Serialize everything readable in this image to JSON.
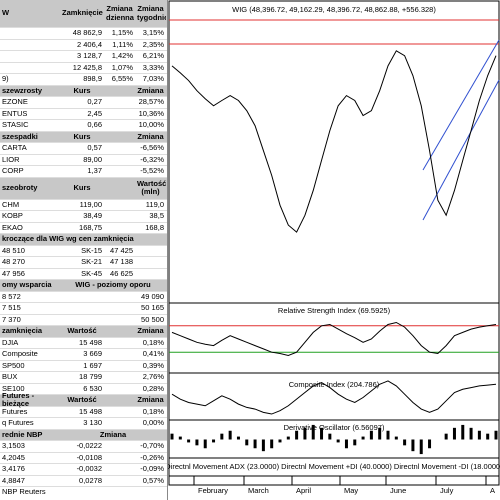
{
  "table": {
    "sections": [
      {
        "header": [
          "W",
          "Zamknięcie",
          "Zmiana dzienna",
          "Zmiana tygodniowa"
        ],
        "tall": true,
        "rows": [
          [
            null,
            "48 862,9",
            "1,15%",
            "3,15%"
          ],
          [
            null,
            "2 406,4",
            "1,11%",
            "2,35%"
          ],
          [
            null,
            "3 128,7",
            "1,42%",
            "6,21%"
          ],
          [
            null,
            "12 425,8",
            "1,07%",
            "3,33%"
          ],
          [
            "9)",
            "898,9",
            "6,55%",
            "7,03%"
          ]
        ]
      },
      {
        "header": [
          "szewzrosty",
          "Kurs",
          null,
          "Zmiana"
        ],
        "rows": [
          [
            "EZONE",
            "0,27",
            null,
            "28,57%"
          ],
          [
            "ENTUS",
            "2,45",
            null,
            "10,36%"
          ],
          [
            "STASIC",
            "0,66",
            null,
            "10,00%"
          ]
        ]
      },
      {
        "header": [
          "szespadki",
          "Kurs",
          null,
          "Zmiana"
        ],
        "rows": [
          [
            "CARTA",
            "0,57",
            null,
            "-6,56%"
          ],
          [
            "LIOR",
            "89,00",
            null,
            "-6,32%"
          ],
          [
            "CORP",
            "1,37",
            null,
            "-5,52%"
          ]
        ]
      },
      {
        "header": [
          "szeobroty",
          "Kurs",
          null,
          "Wartość (mln)"
        ],
        "tall": true,
        "rows": [
          [
            "CHM",
            "119,00",
            null,
            "119,0"
          ],
          [
            "KOBP",
            "38,49",
            null,
            "38,5"
          ],
          [
            "EKAO",
            "168,75",
            null,
            "168,8"
          ]
        ]
      },
      {
        "header": [
          "kroczące dla WIG wg cen zamknięcia"
        ],
        "wide": true,
        "rows": [
          [
            "48 510",
            "SK-15",
            "47 425",
            null
          ],
          [
            "48 270",
            "SK-21",
            "47 138",
            null
          ],
          [
            "47 956",
            "SK-45",
            "46 625",
            null
          ]
        ]
      },
      {
        "header": [
          "omy wsparcia",
          "WIG - poziomy oporu"
        ],
        "rows": [
          [
            "8 572",
            "49 090"
          ],
          [
            "7 515",
            "50 165"
          ],
          [
            "7 370",
            "50 500"
          ]
        ]
      },
      {
        "header": [
          "zamknięcia",
          "Wartość",
          null,
          "Zmiana"
        ],
        "rows": [
          [
            "DJIA",
            "15 498",
            null,
            "0,18%"
          ],
          [
            "Composite",
            "3 669",
            null,
            "0,41%"
          ],
          [
            "SP500",
            "1 697",
            null,
            "0,39%"
          ],
          [
            "BUX",
            "18 799",
            null,
            "2,76%"
          ],
          [
            "SE100",
            "6 530",
            null,
            "0,28%"
          ]
        ]
      },
      {
        "header": [
          "Futures - bieżące",
          "Wartość",
          null,
          "Zmiana"
        ],
        "rows": [
          [
            "Futures",
            "15 498",
            null,
            "0,18%"
          ],
          [
            "q Futures",
            "3 130",
            null,
            "0,00%"
          ]
        ]
      },
      {
        "header": [
          "rednie NBP",
          "Zmiana"
        ],
        "rows": [
          [
            "3,1503",
            "-0,0222",
            null,
            "-0,70%"
          ],
          [
            "4,2045",
            "-0,0108",
            null,
            "-0,26%"
          ],
          [
            "3,4176",
            "-0,0032",
            null,
            "-0,09%"
          ],
          [
            "4,8847",
            "0,0278",
            null,
            "0,57%"
          ]
        ]
      }
    ],
    "footer": "NBP Reuters"
  },
  "x_axis_labels": [
    "February",
    "March",
    "April",
    "May",
    "June",
    "July",
    "A"
  ],
  "chart_data": [
    {
      "type": "line",
      "title": "WIG (48,396.72, 49,162.29, 48,396.72, 48,862.88, +556.328)",
      "color": "#000000",
      "ylim": [
        42400,
        50800
      ],
      "values": [
        49090,
        48890,
        48670,
        48380,
        48150,
        47950,
        48100,
        48240,
        48100,
        47810,
        47380,
        46670,
        45960,
        45110,
        44540,
        44340,
        44820,
        45530,
        46390,
        47240,
        47950,
        48240,
        48100,
        47670,
        47810,
        48380,
        49090,
        49520,
        49380,
        48810,
        47950,
        46670,
        45250,
        44820,
        45530,
        46390,
        47240,
        48100,
        48810,
        49380
      ]
    },
    {
      "type": "line",
      "title": "Relative Strength Index (69.5925)",
      "color": "#000000",
      "ylim": [
        0,
        100
      ],
      "levels": [
        {
          "value": 70,
          "color": "#e03030"
        },
        {
          "value": 30,
          "color": "#20a020"
        }
      ],
      "values": [
        60,
        55,
        50,
        45,
        42,
        40,
        48,
        55,
        50,
        45,
        40,
        35,
        30,
        28,
        25,
        30,
        45,
        60,
        70,
        72,
        65,
        58,
        52,
        45,
        50,
        62,
        72,
        75,
        68,
        55,
        40,
        30,
        28,
        40,
        55,
        60,
        65,
        68,
        70,
        72
      ]
    },
    {
      "type": "line",
      "title": "Composite Index (204.786)",
      "color": "#000000",
      "ylim": [
        0,
        260
      ],
      "values": [
        150,
        120,
        100,
        90,
        80,
        110,
        140,
        120,
        90,
        70,
        60,
        40,
        30,
        50,
        80,
        120,
        160,
        200,
        220,
        190,
        150,
        120,
        100,
        130,
        170,
        210,
        230,
        200,
        150,
        100,
        60,
        40,
        60,
        110,
        160,
        180,
        190,
        200,
        205,
        210
      ]
    },
    {
      "type": "bar",
      "title": "Derivative Oscillator (6.56097)",
      "color": "#000000",
      "ylim": [
        -6,
        6
      ],
      "values": [
        2,
        1,
        -1,
        -2,
        -3,
        -1,
        2,
        3,
        1,
        -2,
        -3,
        -4,
        -3,
        -1,
        1,
        3,
        4,
        5,
        4,
        2,
        -1,
        -3,
        -2,
        1,
        3,
        4,
        3,
        1,
        -2,
        -4,
        -5,
        -3,
        0,
        2,
        4,
        5,
        4,
        3,
        2,
        3
      ]
    },
    {
      "type": "line",
      "title": "Directnl Movement ADX (23.0000) Directnl Movement +DI (40.0000) Directnl Movement -DI (18.0000)"
    }
  ]
}
